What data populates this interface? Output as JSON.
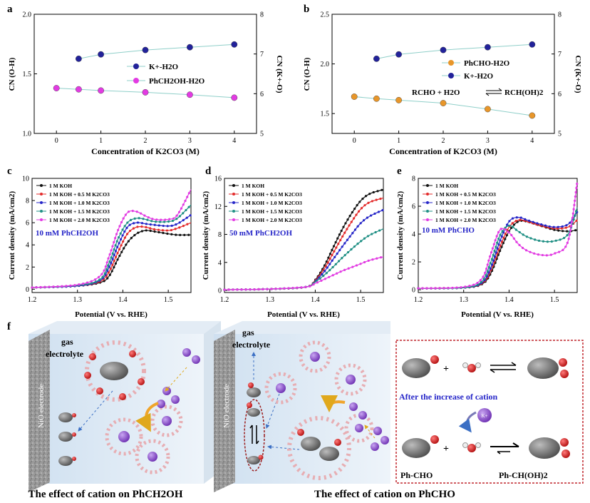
{
  "panel_a": {
    "letter": "a",
    "xlabel": "Concentration of K2CO3 (M)",
    "ylabel_left": "CN (O-H)",
    "ylabel_right": "CN (K+-O)",
    "legend": [
      "K+-H2O",
      "PhCH2OH-H2O"
    ]
  },
  "panel_b": {
    "letter": "b",
    "xlabel": "Concentration of K2CO3 (M)",
    "ylabel_left": "CN (O-H)",
    "ylabel_right": "CN (K+-O)",
    "legend": [
      "PhCHO-H2O",
      "K+-H2O"
    ],
    "equation_left": "RCHO + H2O",
    "equation_right": "RCH(OH)2"
  },
  "panel_c": {
    "letter": "c",
    "annotation": "10 mM PhCH2OH"
  },
  "panel_d": {
    "letter": "d",
    "annotation": "50 mM PhCH2OH"
  },
  "panel_e": {
    "letter": "e",
    "annotation": "10 mM PhCHO"
  },
  "lsv_common": {
    "xlabel": "Potential (V vs. RHE)",
    "ylabel": "Current density (mA/cm2)",
    "legend": [
      "1 M KOH",
      "1 M KOH + 0.5 M K2CO3",
      "1 M KOH + 1.0 M K2CO3",
      "1 M KOH + 1.5 M K2CO3",
      "1 M KOH + 2.0 M K2CO3"
    ]
  },
  "panel_f": {
    "letter": "f",
    "gas": "gas",
    "electrolyte": "electrolyte",
    "electrode": "NiO electrode",
    "after_increase": "After the increase of cation",
    "k_label": "K+",
    "ph_cho": "Ph-CHO",
    "ph_ch_oh2": "Ph-CH(OH)2",
    "caption_left": "The effect of cation on PhCH2OH",
    "caption_right": "The effect of cation on PhCHO"
  },
  "colors": {
    "black": "#111111",
    "red": "#e32b2b",
    "blue": "#2525c8",
    "teal": "#1f8f84",
    "magenta": "#e23be2",
    "navy": "#22229a",
    "orange": "#e8962a",
    "line": "#8fcfc9"
  },
  "chart_data": [
    {
      "id": "a",
      "type": "scatter",
      "title": "",
      "xlabel": "Concentration of K2CO3 (M)",
      "ylabel": "CN (O-H)",
      "ylabel_right": "CN (K+-O)",
      "xlim": [
        -0.5,
        4.5
      ],
      "ylim": [
        1.0,
        2.0
      ],
      "ylim_right": [
        5,
        8
      ],
      "xticks": [
        0,
        1,
        2,
        3,
        4
      ],
      "yticks": [
        1.0,
        1.5,
        2.0
      ],
      "yticks_right": [
        5,
        6,
        7,
        8
      ],
      "series": [
        {
          "name": "K+-H2O",
          "axis": "right",
          "x": [
            0.5,
            1,
            2,
            3,
            4
          ],
          "y": [
            6.88,
            6.99,
            7.1,
            7.17,
            7.24
          ],
          "color": "#22229a"
        },
        {
          "name": "PhCH2OH-H2O",
          "axis": "left",
          "x": [
            0,
            0.5,
            1,
            2,
            3,
            4
          ],
          "y": [
            1.38,
            1.37,
            1.36,
            1.345,
            1.325,
            1.3
          ],
          "color": "#e23be2"
        }
      ]
    },
    {
      "id": "b",
      "type": "scatter",
      "title": "",
      "xlabel": "Concentration of K2CO3 (M)",
      "ylabel": "CN (O-H)",
      "ylabel_right": "CN (K+-O)",
      "xlim": [
        -0.5,
        4.5
      ],
      "ylim": [
        1.3,
        2.5
      ],
      "ylim_right": [
        5,
        8
      ],
      "xticks": [
        0,
        1,
        2,
        3,
        4
      ],
      "yticks": [
        1.5,
        2.0,
        2.5
      ],
      "yticks_right": [
        5,
        6,
        7,
        8
      ],
      "series": [
        {
          "name": "PhCHO-H2O",
          "axis": "left",
          "x": [
            0,
            0.5,
            1,
            2,
            3,
            4
          ],
          "y": [
            1.67,
            1.65,
            1.635,
            1.605,
            1.545,
            1.48
          ],
          "color": "#e8962a"
        },
        {
          "name": "K+-H2O",
          "axis": "right",
          "x": [
            0.5,
            1,
            2,
            3,
            4
          ],
          "y": [
            6.88,
            6.99,
            7.1,
            7.17,
            7.24
          ],
          "color": "#22229a"
        }
      ]
    },
    {
      "id": "c",
      "type": "line",
      "xlabel": "Potential (V vs. RHE)",
      "ylabel": "Current density (mA/cm2)",
      "xlim": [
        1.2,
        1.55
      ],
      "ylim": [
        -0.3,
        10
      ],
      "xticks": [
        1.2,
        1.3,
        1.4,
        1.5
      ],
      "yticks": [
        0,
        2,
        4,
        6,
        8,
        10
      ],
      "series": [
        {
          "name": "1 M KOH",
          "color": "#111111",
          "x": [
            1.2,
            1.3,
            1.35,
            1.37,
            1.39,
            1.41,
            1.43,
            1.45,
            1.47,
            1.5,
            1.52,
            1.55
          ],
          "y": [
            0.15,
            0.3,
            0.6,
            1.2,
            2.8,
            4.2,
            5.0,
            5.3,
            5.2,
            5.0,
            4.9,
            4.9
          ]
        },
        {
          "name": "1 M KOH + 0.5 M K2CO3",
          "color": "#e32b2b",
          "x": [
            1.2,
            1.3,
            1.35,
            1.37,
            1.39,
            1.41,
            1.43,
            1.45,
            1.47,
            1.5,
            1.52,
            1.55
          ],
          "y": [
            0.15,
            0.3,
            0.7,
            1.6,
            3.4,
            5.0,
            5.6,
            5.6,
            5.4,
            5.3,
            5.5,
            6.0
          ]
        },
        {
          "name": "1 M KOH + 1.0 M K2CO3",
          "color": "#2525c8",
          "x": [
            1.2,
            1.3,
            1.35,
            1.37,
            1.39,
            1.41,
            1.43,
            1.45,
            1.47,
            1.5,
            1.52,
            1.55
          ],
          "y": [
            0.15,
            0.3,
            0.8,
            2.0,
            4.0,
            5.6,
            6.0,
            5.9,
            5.8,
            5.7,
            5.9,
            6.7
          ]
        },
        {
          "name": "1 M KOH + 1.5 M K2CO3",
          "color": "#1f8f84",
          "x": [
            1.2,
            1.3,
            1.35,
            1.37,
            1.39,
            1.41,
            1.43,
            1.45,
            1.47,
            1.5,
            1.52,
            1.55
          ],
          "y": [
            0.15,
            0.35,
            0.9,
            2.4,
            4.6,
            6.0,
            6.4,
            6.3,
            6.1,
            6.1,
            6.4,
            7.6
          ]
        },
        {
          "name": "1 M KOH + 2.0 M K2CO3",
          "color": "#e23be2",
          "x": [
            1.2,
            1.3,
            1.35,
            1.37,
            1.39,
            1.41,
            1.43,
            1.45,
            1.47,
            1.5,
            1.52,
            1.55
          ],
          "y": [
            0.15,
            0.4,
            1.2,
            3.0,
            5.4,
            6.9,
            7.0,
            6.6,
            6.3,
            6.3,
            6.7,
            9.0
          ]
        }
      ]
    },
    {
      "id": "d",
      "type": "line",
      "xlabel": "Potential (V vs. RHE)",
      "ylabel": "Current density (mA/cm2)",
      "xlim": [
        1.2,
        1.55
      ],
      "ylim": [
        -0.3,
        16
      ],
      "xticks": [
        1.2,
        1.3,
        1.4,
        1.5
      ],
      "yticks": [
        0,
        4,
        8,
        12,
        16
      ],
      "series": [
        {
          "name": "1 M KOH",
          "color": "#111111",
          "x": [
            1.2,
            1.3,
            1.38,
            1.4,
            1.42,
            1.44,
            1.46,
            1.48,
            1.5,
            1.52,
            1.55
          ],
          "y": [
            0.1,
            0.2,
            0.5,
            1.5,
            3.5,
            6.2,
            8.8,
            11.0,
            12.8,
            13.8,
            14.4
          ]
        },
        {
          "name": "1 M KOH + 0.5 M K2CO3",
          "color": "#e32b2b",
          "x": [
            1.2,
            1.3,
            1.38,
            1.4,
            1.42,
            1.44,
            1.46,
            1.48,
            1.5,
            1.52,
            1.55
          ],
          "y": [
            0.1,
            0.2,
            0.5,
            1.4,
            3.1,
            5.4,
            7.7,
            9.8,
            11.6,
            12.6,
            13.2
          ]
        },
        {
          "name": "1 M KOH + 1.0 M K2CO3",
          "color": "#2525c8",
          "x": [
            1.2,
            1.3,
            1.38,
            1.4,
            1.42,
            1.44,
            1.46,
            1.48,
            1.5,
            1.52,
            1.55
          ],
          "y": [
            0.1,
            0.2,
            0.5,
            1.3,
            2.7,
            4.5,
            6.3,
            8.0,
            9.6,
            10.6,
            11.5
          ]
        },
        {
          "name": "1 M KOH + 1.5 M K2CO3",
          "color": "#1f8f84",
          "x": [
            1.2,
            1.3,
            1.38,
            1.4,
            1.42,
            1.44,
            1.46,
            1.48,
            1.5,
            1.52,
            1.55
          ],
          "y": [
            0.1,
            0.2,
            0.5,
            1.2,
            2.2,
            3.4,
            4.7,
            5.9,
            7.0,
            7.9,
            8.8
          ]
        },
        {
          "name": "1 M KOH + 2.0 M K2CO3",
          "color": "#e23be2",
          "x": [
            1.2,
            1.3,
            1.38,
            1.4,
            1.42,
            1.44,
            1.46,
            1.48,
            1.5,
            1.52,
            1.55
          ],
          "y": [
            0.1,
            0.2,
            0.5,
            1.0,
            1.6,
            2.2,
            2.8,
            3.3,
            3.8,
            4.3,
            4.8
          ]
        }
      ]
    },
    {
      "id": "e",
      "type": "line",
      "xlabel": "Potential (V vs. RHE)",
      "ylabel": "Current density (mA/cm2)",
      "xlim": [
        1.2,
        1.55
      ],
      "ylim": [
        -0.2,
        8
      ],
      "xticks": [
        1.2,
        1.3,
        1.4,
        1.5
      ],
      "yticks": [
        0,
        2,
        4,
        6,
        8
      ],
      "series": [
        {
          "name": "1 M KOH",
          "color": "#111111",
          "x": [
            1.2,
            1.3,
            1.34,
            1.36,
            1.38,
            1.4,
            1.42,
            1.44,
            1.47,
            1.5,
            1.53,
            1.55
          ],
          "y": [
            0.1,
            0.15,
            0.4,
            1.2,
            2.8,
            4.2,
            4.9,
            4.9,
            4.6,
            4.3,
            4.2,
            4.3
          ]
        },
        {
          "name": "1 M KOH + 0.5 M K2CO3",
          "color": "#e32b2b",
          "x": [
            1.2,
            1.3,
            1.34,
            1.36,
            1.38,
            1.4,
            1.42,
            1.44,
            1.47,
            1.5,
            1.53,
            1.55
          ],
          "y": [
            0.1,
            0.15,
            0.45,
            1.4,
            3.1,
            4.5,
            5.0,
            4.9,
            4.6,
            4.4,
            4.5,
            5.0
          ]
        },
        {
          "name": "1 M KOH + 1.0 M K2CO3",
          "color": "#2525c8",
          "x": [
            1.2,
            1.3,
            1.34,
            1.36,
            1.38,
            1.4,
            1.42,
            1.44,
            1.47,
            1.5,
            1.53,
            1.55
          ],
          "y": [
            0.1,
            0.15,
            0.5,
            1.6,
            3.5,
            4.9,
            5.2,
            5.0,
            4.7,
            4.5,
            4.7,
            5.6
          ]
        },
        {
          "name": "1 M KOH + 1.5 M K2CO3",
          "color": "#1f8f84",
          "x": [
            1.2,
            1.3,
            1.34,
            1.36,
            1.38,
            1.4,
            1.42,
            1.44,
            1.47,
            1.5,
            1.53,
            1.55
          ],
          "y": [
            0.1,
            0.15,
            0.6,
            2.0,
            3.9,
            4.6,
            4.2,
            3.8,
            3.5,
            3.5,
            4.0,
            5.9
          ]
        },
        {
          "name": "1 M KOH + 2.0 M K2CO3",
          "color": "#e23be2",
          "x": [
            1.2,
            1.3,
            1.34,
            1.36,
            1.38,
            1.4,
            1.42,
            1.44,
            1.47,
            1.5,
            1.53,
            1.55
          ],
          "y": [
            0.1,
            0.2,
            0.8,
            2.6,
            4.3,
            4.1,
            3.3,
            2.8,
            2.5,
            2.6,
            3.5,
            7.7
          ]
        }
      ]
    }
  ]
}
